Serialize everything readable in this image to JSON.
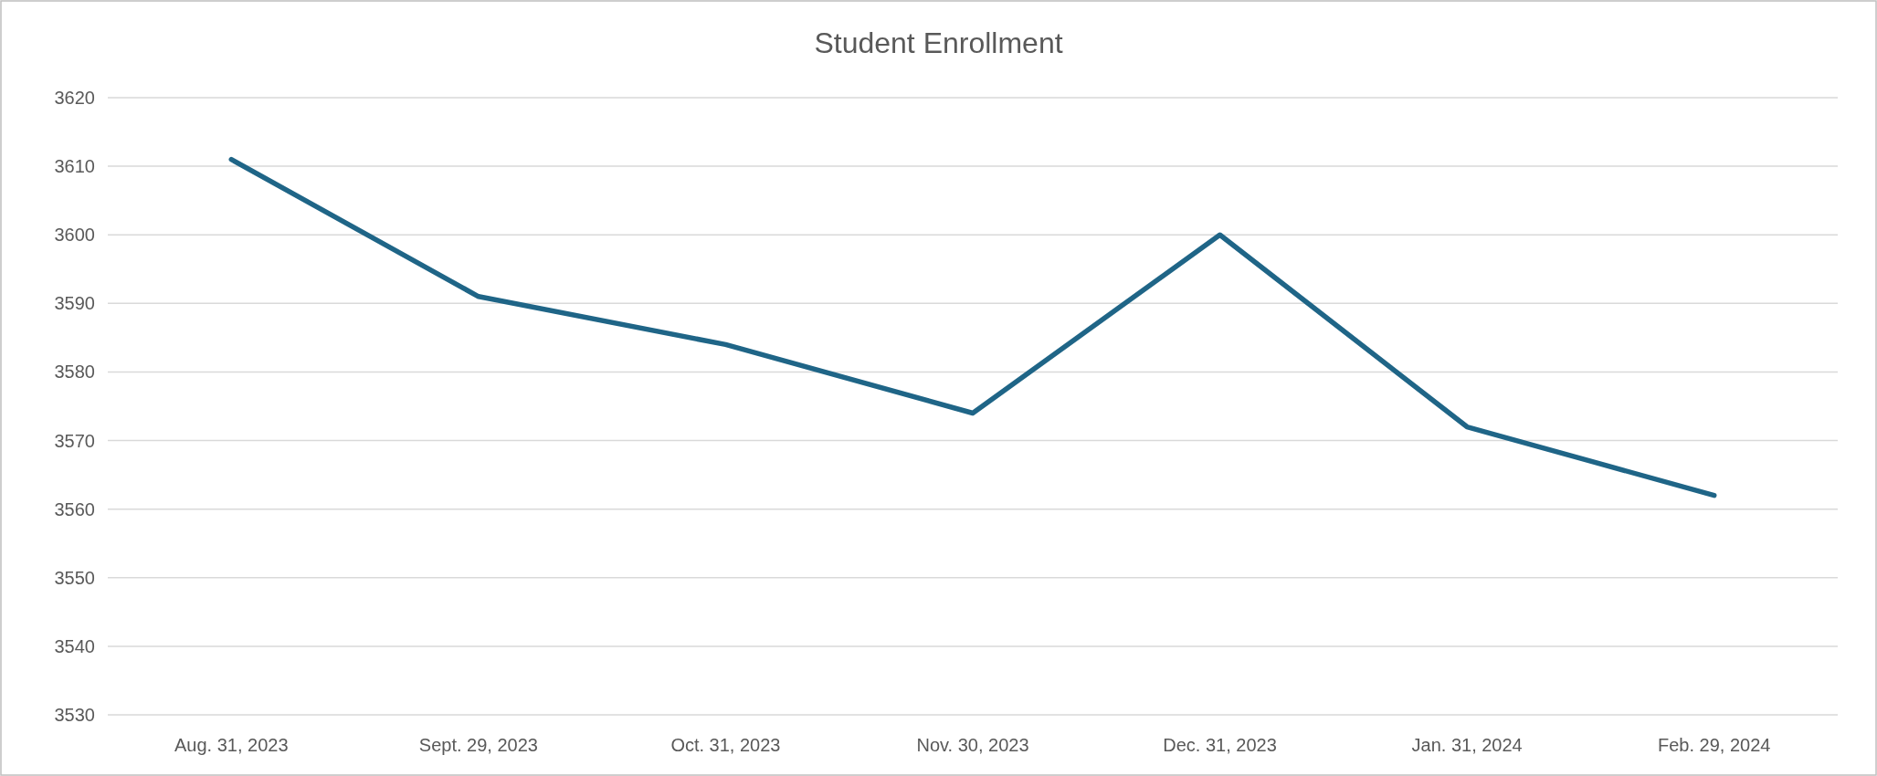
{
  "chart_data": {
    "type": "line",
    "title": "Student Enrollment",
    "categories": [
      "Aug. 31, 2023",
      "Sept. 29, 2023",
      "Oct. 31, 2023",
      "Nov. 30, 2023",
      "Dec. 31, 2023",
      "Jan. 31, 2024",
      "Feb. 29, 2024"
    ],
    "series": [
      {
        "color": "#1f6587",
        "values": [
          3611,
          3591,
          3584,
          3574,
          3600,
          3572,
          3562
        ]
      }
    ],
    "ylim": [
      3530,
      3620
    ],
    "yticks": [
      3530,
      3540,
      3550,
      3560,
      3570,
      3580,
      3590,
      3600,
      3610,
      3620
    ],
    "grid": "y",
    "marker": "none",
    "line_style": "solid"
  }
}
